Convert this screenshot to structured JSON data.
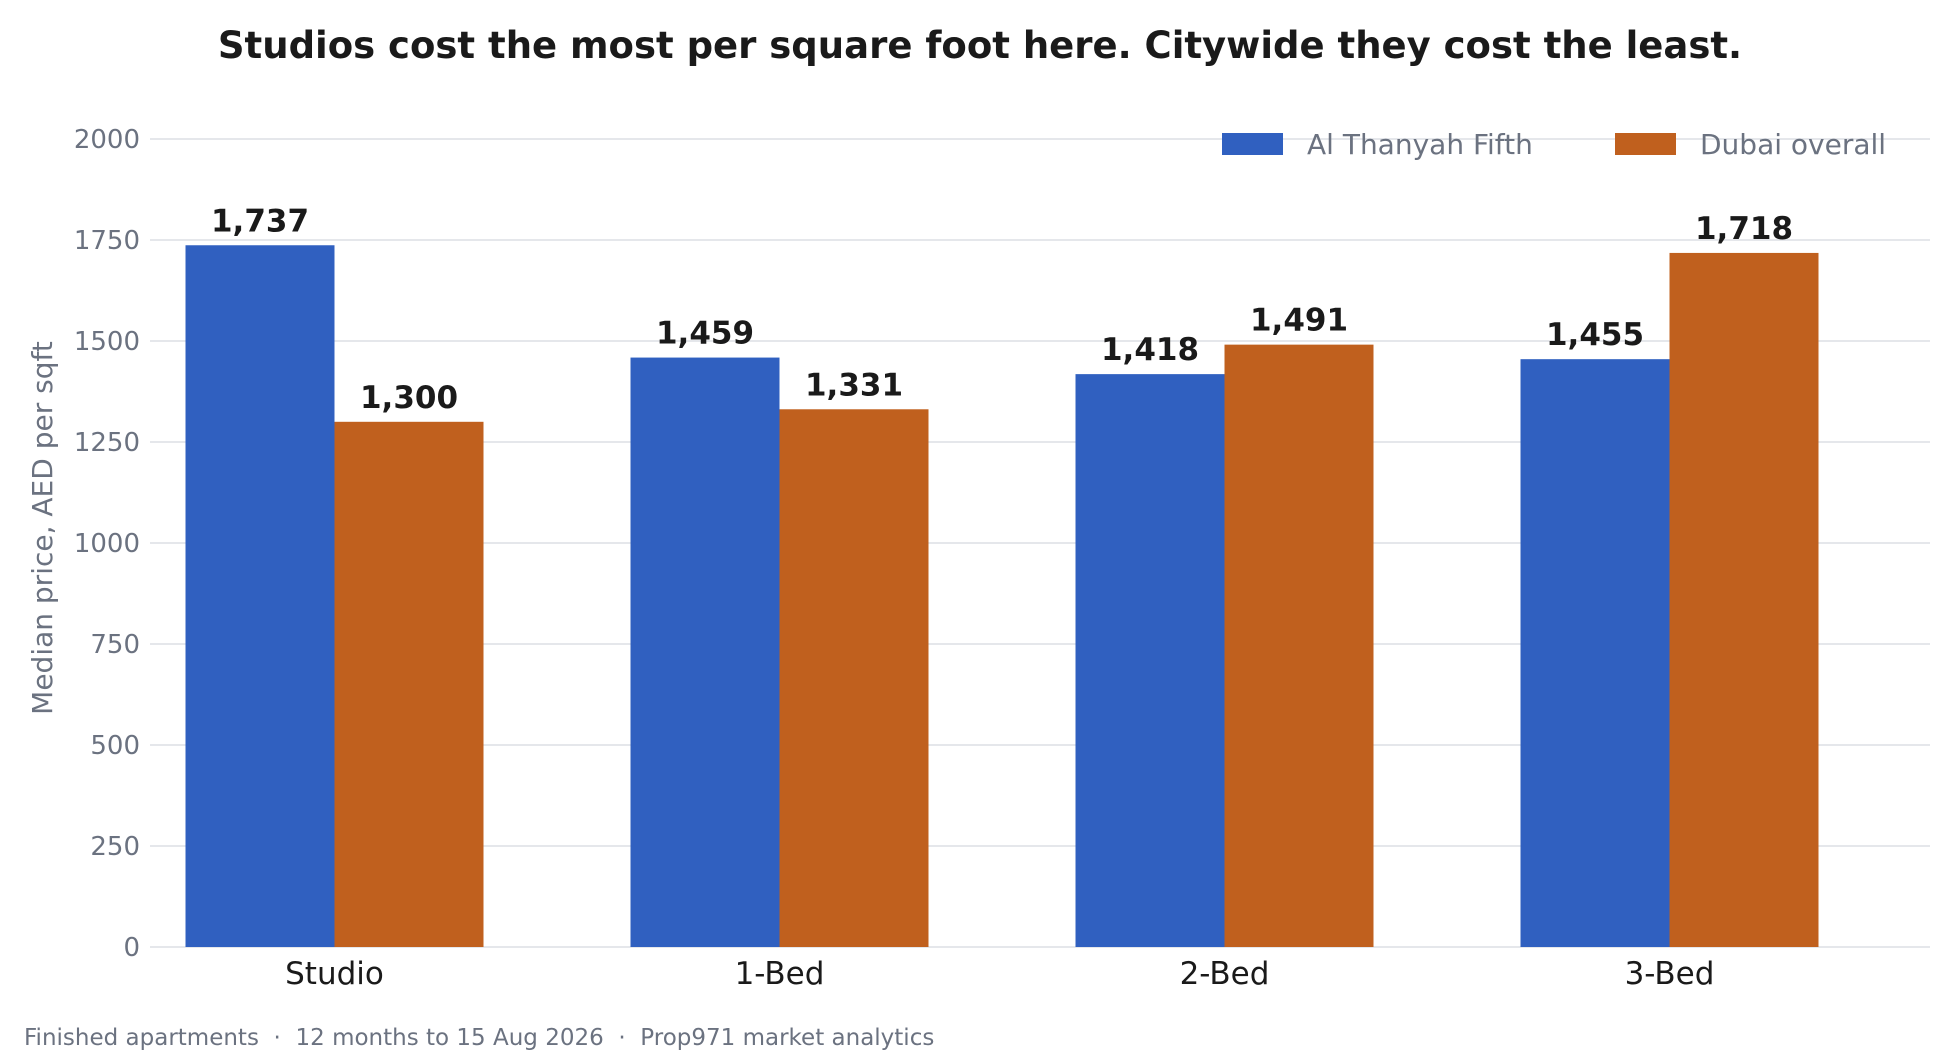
{
  "chart_data": {
    "type": "bar",
    "title": "Studios cost the most per square foot here. Citywide they cost the least.",
    "ylabel": "Median price, AED per sqft",
    "xlabel": "",
    "categories": [
      "Studio",
      "1-Bed",
      "2-Bed",
      "3-Bed"
    ],
    "series": [
      {
        "name": "Al Thanyah Fifth",
        "color": "#3060c0",
        "values": [
          1737,
          1459,
          1418,
          1455
        ],
        "labels": [
          "1,737",
          "1,459",
          "1,418",
          "1,455"
        ]
      },
      {
        "name": "Dubai overall",
        "color": "#c0601e",
        "values": [
          1300,
          1331,
          1491,
          1718
        ],
        "labels": [
          "1,300",
          "1,331",
          "1,491",
          "1,718"
        ]
      }
    ],
    "ylim": [
      0,
      2000
    ],
    "yticks": [
      0,
      250,
      500,
      750,
      1000,
      1250,
      1500,
      1750,
      2000
    ],
    "grid": true,
    "legend_position": "top-right"
  },
  "footnote": "Finished apartments  ·  12 months to 15 Aug 2026  ·  Prop971 market analytics"
}
